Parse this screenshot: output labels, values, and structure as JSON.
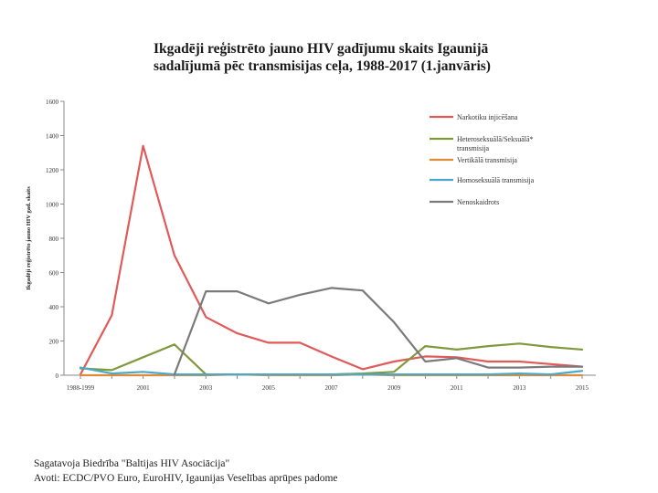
{
  "chart_data": {
    "type": "line",
    "title": "Ikgadēji reģistrēto jauno HIV gadījumu skaits Igaunijā sadalījumā pēc transmisijas ceļa, 1988-2017 (1.janvāris)",
    "title_lines": [
      "Ikgadēji reģistrēto jauno HIV gadījumu skaits Igaunijā",
      "sadalījumā pēc transmisijas ceļa, 1988-2017 (1.janvāris)"
    ],
    "xlabel": "",
    "ylabel": "Ikgadēji reģistrēto jauno HIV gad. skaits",
    "ylim": [
      0,
      1600
    ],
    "yticks": [
      0,
      200,
      400,
      600,
      800,
      1000,
      1200,
      1400,
      1600
    ],
    "x": [
      "1988-1999",
      "2000",
      "2001",
      "2002",
      "2003",
      "2004",
      "2005",
      "2006",
      "2007",
      "2008",
      "2009",
      "2010",
      "2011",
      "2012",
      "2013",
      "2014",
      "2015"
    ],
    "xtick_labels": [
      "1988-1999",
      "2001",
      "2003",
      "2005",
      "2007",
      "2009",
      "2011",
      "2013",
      "2015"
    ],
    "grid": false,
    "legend_position": "top-right",
    "series": [
      {
        "name": "Narkotiku injicēšana",
        "color": "#e05a5a",
        "values": [
          5,
          350,
          1340,
          700,
          340,
          245,
          190,
          190,
          110,
          35,
          80,
          110,
          105,
          80,
          80,
          65,
          50
        ]
      },
      {
        "name": "Heteroseksuālā/Seksuālā* transmisija",
        "color": "#7f9a3c",
        "values": [
          40,
          30,
          105,
          180,
          5,
          5,
          5,
          5,
          5,
          10,
          20,
          170,
          150,
          170,
          185,
          165,
          150
        ]
      },
      {
        "name": "Vertikālā transmisija",
        "color": "#e08a3c",
        "values": [
          0,
          0,
          0,
          0,
          0,
          5,
          0,
          0,
          0,
          5,
          0,
          0,
          0,
          0,
          0,
          0,
          0
        ]
      },
      {
        "name": "Homoseksuālā transmisija",
        "color": "#4aa8c8",
        "values": [
          45,
          10,
          20,
          5,
          5,
          5,
          5,
          5,
          5,
          5,
          5,
          5,
          5,
          5,
          10,
          5,
          25
        ]
      },
      {
        "name": "Nenoskaidrots",
        "color": "#7a7a7a",
        "values": [
          null,
          null,
          null,
          5,
          490,
          490,
          420,
          470,
          510,
          495,
          310,
          80,
          100,
          45,
          45,
          50,
          50
        ]
      }
    ]
  },
  "footer": {
    "line1": "Sagatavoja Biedrība \"Baltijas HIV Asociācija\"",
    "line2": "Avoti: ECDC/PVO Euro, EuroHIV, Igaunijas Veselības aprūpes padome"
  }
}
